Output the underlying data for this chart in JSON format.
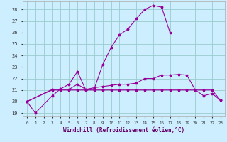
{
  "xlabel": "Windchill (Refroidissement éolien,°C)",
  "background_color": "#cceeff",
  "grid_color": "#99cccc",
  "line_color": "#990099",
  "xlim": [
    -0.5,
    23.5
  ],
  "ylim": [
    18.7,
    28.7
  ],
  "xticks": [
    0,
    1,
    2,
    3,
    4,
    5,
    6,
    7,
    8,
    9,
    10,
    11,
    12,
    13,
    14,
    15,
    16,
    17,
    18,
    19,
    20,
    21,
    22,
    23
  ],
  "yticks": [
    19,
    20,
    21,
    22,
    23,
    24,
    25,
    26,
    27,
    28
  ],
  "line1_x": [
    0,
    1,
    3,
    4,
    5,
    6,
    7,
    8,
    9,
    10,
    11,
    12,
    13,
    14,
    15,
    16,
    17
  ],
  "line1_y": [
    20.0,
    19.0,
    20.5,
    21.1,
    21.5,
    22.6,
    21.0,
    21.1,
    23.2,
    24.7,
    25.8,
    26.3,
    27.2,
    28.0,
    28.35,
    28.2,
    26.0
  ],
  "line2_x": [
    0,
    3,
    4,
    5,
    6,
    7,
    8,
    9,
    10,
    11,
    12,
    13,
    14,
    15,
    16,
    17,
    18,
    19,
    20,
    21,
    22,
    23
  ],
  "line2_y": [
    20.0,
    21.05,
    21.05,
    21.05,
    21.5,
    21.05,
    21.2,
    21.3,
    21.4,
    21.5,
    21.5,
    21.6,
    22.0,
    22.0,
    22.3,
    22.3,
    22.35,
    22.3,
    21.0,
    20.5,
    20.7,
    20.1
  ],
  "line3_x": [
    0,
    3,
    4,
    5,
    6,
    7,
    8,
    9,
    10,
    11,
    12,
    13,
    14,
    15,
    16,
    17,
    18,
    19,
    20,
    21,
    22,
    23
  ],
  "line3_y": [
    20.0,
    21.0,
    21.0,
    21.0,
    21.0,
    21.0,
    21.0,
    21.0,
    21.0,
    21.0,
    21.0,
    21.0,
    21.0,
    21.0,
    21.0,
    21.0,
    21.0,
    21.0,
    21.0,
    21.0,
    21.0,
    20.1
  ]
}
